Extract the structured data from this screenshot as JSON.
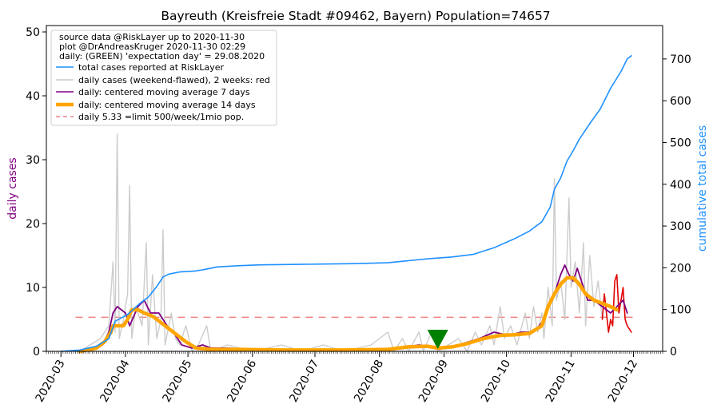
{
  "chart_data": {
    "type": "line",
    "title": "Bayreuth (Kreisfreie Stadt #09462, Bayern) Population=74657",
    "ylabel_left": "daily cases",
    "ylabel_right": "cumulative total cases",
    "ylim_left": [
      0,
      51
    ],
    "ylim_right": [
      0,
      780
    ],
    "xlim": [
      "2020-02-23",
      "2020-12-15"
    ],
    "left_ticks": [
      "0",
      "10",
      "20",
      "30",
      "40",
      "50"
    ],
    "right_ticks": [
      "0",
      "100",
      "200",
      "300",
      "400",
      "500",
      "600",
      "700"
    ],
    "x_ticks": [
      "2020-03",
      "2020-04",
      "2020-05",
      "2020-06",
      "2020-07",
      "2020-08",
      "2020-09",
      "2020-10",
      "2020-11",
      "2020-12"
    ],
    "legend_placement": "top-left",
    "legend_header": [
      "source data @RiskLayer up to 2020-11-30",
      "plot @DrAndreasKruger 2020-11-30 02:29",
      "daily: (GREEN) 'expectation day' = 29.08.2020"
    ],
    "legend": [
      {
        "label": "total cases reported at RiskLayer",
        "color": "#1e90ff"
      },
      {
        "label": "daily cases (weekend-flawed), 2 weeks: red",
        "color": "#cccccc"
      },
      {
        "label": "daily: centered moving average 7 days",
        "color": "#800080"
      },
      {
        "label": "daily: centered moving average 14 days",
        "color": "#ffa500"
      },
      {
        "label": "daily 5.33 =limit 500/week/1mio pop.",
        "color": "#f08080"
      }
    ],
    "limit_line": 5.33,
    "expectation_marker": {
      "date": "2020-08-29",
      "color": "#008000"
    },
    "series": [
      {
        "name": "total cases reported at RiskLayer",
        "axis": "right",
        "color": "#1e90ff",
        "points": [
          [
            "2020-03-01",
            0
          ],
          [
            "2020-03-10",
            3
          ],
          [
            "2020-03-18",
            12
          ],
          [
            "2020-03-24",
            30
          ],
          [
            "2020-03-27",
            72
          ],
          [
            "2020-04-02",
            88
          ],
          [
            "2020-04-08",
            115
          ],
          [
            "2020-04-12",
            130
          ],
          [
            "2020-04-16",
            155
          ],
          [
            "2020-04-19",
            178
          ],
          [
            "2020-04-22",
            185
          ],
          [
            "2020-04-27",
            190
          ],
          [
            "2020-05-04",
            192
          ],
          [
            "2020-05-08",
            195
          ],
          [
            "2020-05-15",
            202
          ],
          [
            "2020-05-25",
            205
          ],
          [
            "2020-06-05",
            207
          ],
          [
            "2020-06-20",
            208
          ],
          [
            "2020-07-05",
            209
          ],
          [
            "2020-07-20",
            210
          ],
          [
            "2020-08-05",
            212
          ],
          [
            "2020-08-15",
            217
          ],
          [
            "2020-08-25",
            222
          ],
          [
            "2020-09-05",
            226
          ],
          [
            "2020-09-15",
            232
          ],
          [
            "2020-09-25",
            248
          ],
          [
            "2020-10-05",
            270
          ],
          [
            "2020-10-12",
            288
          ],
          [
            "2020-10-18",
            310
          ],
          [
            "2020-10-22",
            345
          ],
          [
            "2020-10-24",
            388
          ],
          [
            "2020-10-27",
            415
          ],
          [
            "2020-10-30",
            455
          ],
          [
            "2020-11-02",
            480
          ],
          [
            "2020-11-05",
            508
          ],
          [
            "2020-11-10",
            545
          ],
          [
            "2020-11-15",
            580
          ],
          [
            "2020-11-20",
            630
          ],
          [
            "2020-11-25",
            670
          ],
          [
            "2020-11-28",
            700
          ],
          [
            "2020-11-30",
            708
          ]
        ]
      },
      {
        "name": "daily cases (weekend-flawed), 2 weeks: red",
        "axis": "left",
        "color": "#cccccc",
        "points": [
          [
            "2020-03-10",
            0
          ],
          [
            "2020-03-15",
            1
          ],
          [
            "2020-03-20",
            2
          ],
          [
            "2020-03-24",
            4
          ],
          [
            "2020-03-26",
            14
          ],
          [
            "2020-03-27",
            3
          ],
          [
            "2020-03-28",
            34
          ],
          [
            "2020-03-29",
            2
          ],
          [
            "2020-03-31",
            5
          ],
          [
            "2020-04-02",
            9
          ],
          [
            "2020-04-03",
            26
          ],
          [
            "2020-04-04",
            2
          ],
          [
            "2020-04-06",
            7
          ],
          [
            "2020-04-09",
            4
          ],
          [
            "2020-04-11",
            17
          ],
          [
            "2020-04-12",
            1
          ],
          [
            "2020-04-14",
            12
          ],
          [
            "2020-04-16",
            2
          ],
          [
            "2020-04-18",
            5
          ],
          [
            "2020-04-19",
            19
          ],
          [
            "2020-04-20",
            1
          ],
          [
            "2020-04-23",
            6
          ],
          [
            "2020-04-25",
            2
          ],
          [
            "2020-04-27",
            1
          ],
          [
            "2020-04-30",
            4
          ],
          [
            "2020-05-03",
            0
          ],
          [
            "2020-05-06",
            1
          ],
          [
            "2020-05-10",
            4
          ],
          [
            "2020-05-12",
            0
          ],
          [
            "2020-05-20",
            1
          ],
          [
            "2020-06-01",
            0
          ],
          [
            "2020-06-15",
            1
          ],
          [
            "2020-06-25",
            0
          ],
          [
            "2020-07-05",
            1
          ],
          [
            "2020-07-15",
            0
          ],
          [
            "2020-07-28",
            1
          ],
          [
            "2020-08-05",
            3
          ],
          [
            "2020-08-08",
            0
          ],
          [
            "2020-08-12",
            2
          ],
          [
            "2020-08-15",
            0
          ],
          [
            "2020-08-20",
            3
          ],
          [
            "2020-08-22",
            0
          ],
          [
            "2020-08-26",
            3
          ],
          [
            "2020-08-29",
            0
          ],
          [
            "2020-09-03",
            1
          ],
          [
            "2020-09-08",
            2
          ],
          [
            "2020-09-12",
            0
          ],
          [
            "2020-09-16",
            3
          ],
          [
            "2020-09-19",
            1
          ],
          [
            "2020-09-23",
            4
          ],
          [
            "2020-09-25",
            1
          ],
          [
            "2020-09-28",
            7
          ],
          [
            "2020-09-30",
            2
          ],
          [
            "2020-10-03",
            4
          ],
          [
            "2020-10-06",
            1
          ],
          [
            "2020-10-10",
            6
          ],
          [
            "2020-10-12",
            2
          ],
          [
            "2020-10-14",
            7
          ],
          [
            "2020-10-16",
            3
          ],
          [
            "2020-10-18",
            6
          ],
          [
            "2020-10-19",
            2
          ],
          [
            "2020-10-21",
            10
          ],
          [
            "2020-10-23",
            4
          ],
          [
            "2020-10-24",
            27
          ],
          [
            "2020-10-25",
            8
          ],
          [
            "2020-10-27",
            11
          ],
          [
            "2020-10-29",
            5
          ],
          [
            "2020-10-31",
            24
          ],
          [
            "2020-11-01",
            10
          ],
          [
            "2020-11-03",
            14
          ],
          [
            "2020-11-05",
            6
          ],
          [
            "2020-11-07",
            17
          ],
          [
            "2020-11-08",
            4
          ],
          [
            "2020-11-10",
            15
          ],
          [
            "2020-11-12",
            7
          ],
          [
            "2020-11-14",
            11
          ],
          [
            "2020-11-16",
            5
          ]
        ]
      },
      {
        "name": "daily cases, last 2 weeks",
        "axis": "left",
        "color": "#e00000",
        "points": [
          [
            "2020-11-16",
            5
          ],
          [
            "2020-11-17",
            9
          ],
          [
            "2020-11-18",
            6
          ],
          [
            "2020-11-19",
            3
          ],
          [
            "2020-11-20",
            5
          ],
          [
            "2020-11-21",
            4
          ],
          [
            "2020-11-22",
            11
          ],
          [
            "2020-11-23",
            12
          ],
          [
            "2020-11-24",
            6
          ],
          [
            "2020-11-25",
            8
          ],
          [
            "2020-11-26",
            10
          ],
          [
            "2020-11-27",
            5
          ],
          [
            "2020-11-28",
            4
          ],
          [
            "2020-11-29",
            3.5
          ],
          [
            "2020-11-30",
            3
          ]
        ]
      },
      {
        "name": "daily: centered moving average 7 days",
        "axis": "left",
        "color": "#800080",
        "points": [
          [
            "2020-03-10",
            0
          ],
          [
            "2020-03-17",
            0.5
          ],
          [
            "2020-03-21",
            1
          ],
          [
            "2020-03-24",
            3
          ],
          [
            "2020-03-26",
            6
          ],
          [
            "2020-03-28",
            7
          ],
          [
            "2020-04-01",
            6
          ],
          [
            "2020-04-03",
            4
          ],
          [
            "2020-04-07",
            7
          ],
          [
            "2020-04-10",
            8
          ],
          [
            "2020-04-13",
            6
          ],
          [
            "2020-04-17",
            6
          ],
          [
            "2020-04-21",
            4
          ],
          [
            "2020-04-24",
            3
          ],
          [
            "2020-04-28",
            1
          ],
          [
            "2020-05-03",
            0.5
          ],
          [
            "2020-05-08",
            1
          ],
          [
            "2020-05-12",
            0.5
          ],
          [
            "2020-05-20",
            0.5
          ],
          [
            "2020-06-10",
            0.2
          ],
          [
            "2020-07-10",
            0.2
          ],
          [
            "2020-08-10",
            0.5
          ],
          [
            "2020-08-20",
            1
          ],
          [
            "2020-08-29",
            0.5
          ],
          [
            "2020-09-08",
            1
          ],
          [
            "2020-09-18",
            2
          ],
          [
            "2020-09-25",
            3
          ],
          [
            "2020-10-02",
            2.5
          ],
          [
            "2020-10-08",
            3
          ],
          [
            "2020-10-14",
            3
          ],
          [
            "2020-10-18",
            4.5
          ],
          [
            "2020-10-21",
            7
          ],
          [
            "2020-10-24",
            9
          ],
          [
            "2020-10-27",
            12
          ],
          [
            "2020-10-29",
            13.5
          ],
          [
            "2020-10-31",
            12
          ],
          [
            "2020-11-02",
            11
          ],
          [
            "2020-11-04",
            13
          ],
          [
            "2020-11-06",
            11
          ],
          [
            "2020-11-09",
            8
          ],
          [
            "2020-11-12",
            8
          ],
          [
            "2020-11-16",
            7
          ],
          [
            "2020-11-20",
            6
          ],
          [
            "2020-11-23",
            7
          ],
          [
            "2020-11-26",
            8
          ],
          [
            "2020-11-28",
            6
          ]
        ]
      },
      {
        "name": "daily: centered moving average 14 days",
        "axis": "left",
        "color": "#ffa500",
        "points": [
          [
            "2020-03-10",
            0
          ],
          [
            "2020-03-18",
            0.5
          ],
          [
            "2020-03-22",
            1.5
          ],
          [
            "2020-03-25",
            3
          ],
          [
            "2020-03-26",
            4
          ],
          [
            "2020-03-28",
            4
          ],
          [
            "2020-03-31",
            4
          ],
          [
            "2020-04-02",
            5
          ],
          [
            "2020-04-04",
            6.5
          ],
          [
            "2020-04-07",
            6.5
          ],
          [
            "2020-04-10",
            6
          ],
          [
            "2020-04-14",
            5.5
          ],
          [
            "2020-04-18",
            4.5
          ],
          [
            "2020-04-22",
            3.5
          ],
          [
            "2020-04-26",
            2.5
          ],
          [
            "2020-04-30",
            1.5
          ],
          [
            "2020-05-05",
            0.5
          ],
          [
            "2020-05-12",
            0.3
          ],
          [
            "2020-05-25",
            0.3
          ],
          [
            "2020-06-15",
            0.2
          ],
          [
            "2020-07-15",
            0.2
          ],
          [
            "2020-08-05",
            0.3
          ],
          [
            "2020-08-15",
            0.7
          ],
          [
            "2020-08-24",
            0.8
          ],
          [
            "2020-08-29",
            0.5
          ],
          [
            "2020-09-05",
            0.7
          ],
          [
            "2020-09-12",
            1.2
          ],
          [
            "2020-09-20",
            2
          ],
          [
            "2020-09-28",
            2.5
          ],
          [
            "2020-10-05",
            2.6
          ],
          [
            "2020-10-12",
            2.8
          ],
          [
            "2020-10-18",
            4
          ],
          [
            "2020-10-21",
            7
          ],
          [
            "2020-10-24",
            9
          ],
          [
            "2020-10-27",
            10.5
          ],
          [
            "2020-10-30",
            11.5
          ],
          [
            "2020-11-02",
            11.5
          ],
          [
            "2020-11-05",
            10.5
          ],
          [
            "2020-11-08",
            9
          ],
          [
            "2020-11-12",
            8
          ],
          [
            "2020-11-16",
            7.5
          ],
          [
            "2020-11-20",
            7
          ],
          [
            "2020-11-23",
            6.5
          ]
        ]
      }
    ]
  }
}
